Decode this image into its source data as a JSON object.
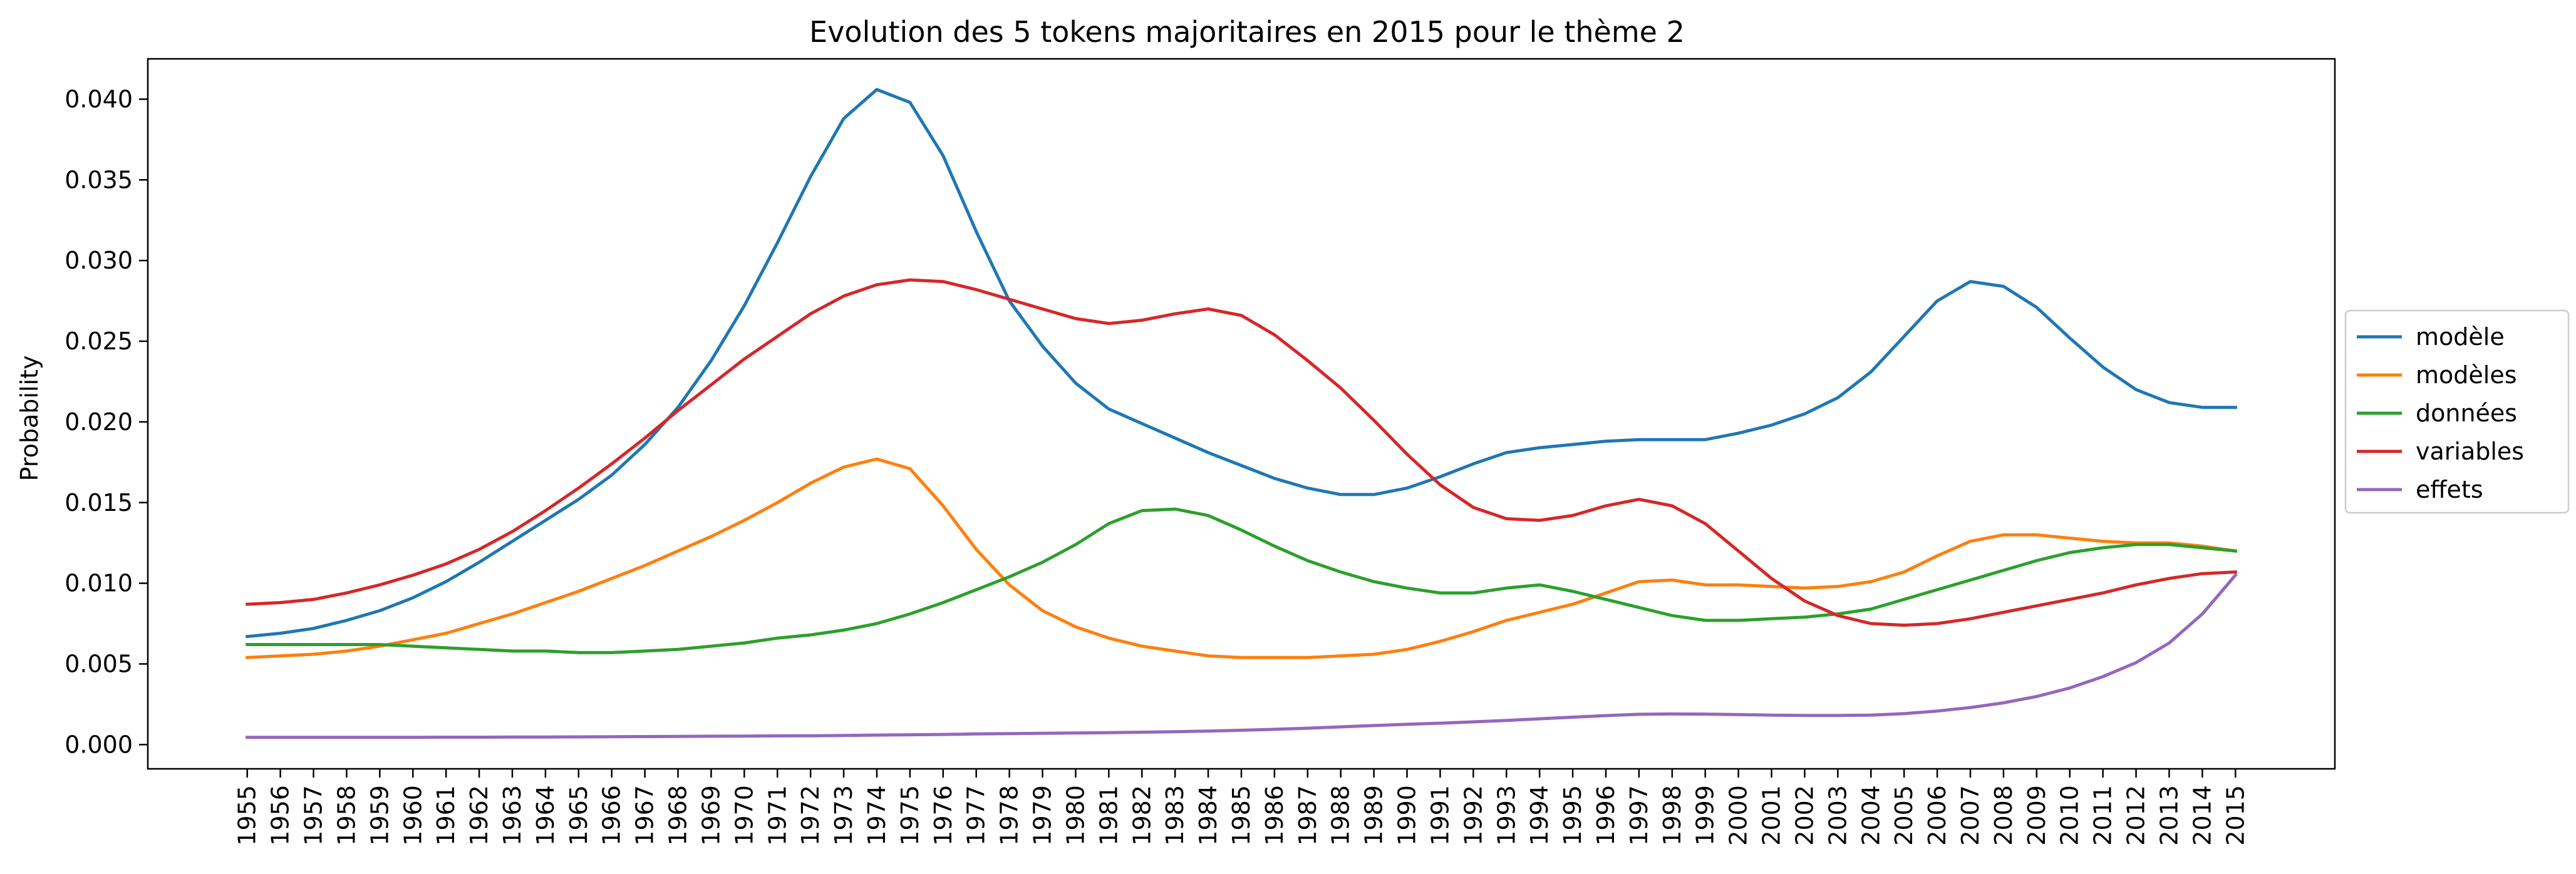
{
  "chart_data": {
    "type": "line",
    "title": "Evolution des 5 tokens majoritaires en 2015 pour le thème 2",
    "xlabel": "",
    "ylabel": "Probability",
    "x": [
      1955,
      1956,
      1957,
      1958,
      1959,
      1960,
      1961,
      1962,
      1963,
      1964,
      1965,
      1966,
      1967,
      1968,
      1969,
      1970,
      1971,
      1972,
      1973,
      1974,
      1975,
      1976,
      1977,
      1978,
      1979,
      1980,
      1981,
      1982,
      1983,
      1984,
      1985,
      1986,
      1987,
      1988,
      1989,
      1990,
      1991,
      1992,
      1993,
      1994,
      1995,
      1996,
      1997,
      1998,
      1999,
      2000,
      2001,
      2002,
      2003,
      2004,
      2005,
      2006,
      2007,
      2008,
      2009,
      2010,
      2011,
      2012,
      2013,
      2014,
      2015
    ],
    "x_tick_labels": [
      "1955",
      "1956",
      "1957",
      "1958",
      "1959",
      "1960",
      "1961",
      "1962",
      "1963",
      "1964",
      "1965",
      "1966",
      "1967",
      "1968",
      "1969",
      "1970",
      "1971",
      "1972",
      "1973",
      "1974",
      "1975",
      "1976",
      "1977",
      "1978",
      "1979",
      "1980",
      "1981",
      "1982",
      "1983",
      "1984",
      "1985",
      "1986",
      "1987",
      "1988",
      "1989",
      "1990",
      "1991",
      "1992",
      "1993",
      "1994",
      "1995",
      "1996",
      "1997",
      "1998",
      "1999",
      "2000",
      "2001",
      "2002",
      "2003",
      "2004",
      "2005",
      "2006",
      "2007",
      "2008",
      "2009",
      "2010",
      "2011",
      "2012",
      "2013",
      "2014",
      "2015"
    ],
    "y_ticks": [
      0.0,
      0.005,
      0.01,
      0.015,
      0.02,
      0.025,
      0.03,
      0.035,
      0.04
    ],
    "y_tick_labels": [
      "0.000",
      "0.005",
      "0.010",
      "0.015",
      "0.020",
      "0.025",
      "0.030",
      "0.035",
      "0.040"
    ],
    "ylim": [
      -0.0015,
      0.0425
    ],
    "xlim": [
      1952,
      2018
    ],
    "grid": false,
    "legend_position": "center-right-outside",
    "series": [
      {
        "name": "modèle",
        "color": "#1f77b4",
        "values": [
          0.0067,
          0.0069,
          0.0072,
          0.0077,
          0.0083,
          0.0091,
          0.0101,
          0.0113,
          0.0126,
          0.0139,
          0.0152,
          0.0167,
          0.0186,
          0.0209,
          0.0238,
          0.0272,
          0.0311,
          0.0352,
          0.0388,
          0.0406,
          0.0398,
          0.0365,
          0.0318,
          0.0275,
          0.0247,
          0.0224,
          0.0208,
          0.0199,
          0.019,
          0.0181,
          0.0173,
          0.0165,
          0.0159,
          0.0155,
          0.0155,
          0.0159,
          0.0166,
          0.0174,
          0.0181,
          0.0184,
          0.0186,
          0.0188,
          0.0189,
          0.0189,
          0.0189,
          0.0193,
          0.0198,
          0.0205,
          0.0215,
          0.0231,
          0.0253,
          0.0275,
          0.0287,
          0.0284,
          0.0271,
          0.0252,
          0.0234,
          0.022,
          0.0212,
          0.0209,
          0.0209
        ]
      },
      {
        "name": "modèles",
        "color": "#ff7f0e",
        "values": [
          0.0054,
          0.0055,
          0.0056,
          0.0058,
          0.0061,
          0.0065,
          0.0069,
          0.0075,
          0.0081,
          0.0088,
          0.0095,
          0.0103,
          0.0111,
          0.012,
          0.0129,
          0.0139,
          0.015,
          0.0162,
          0.0172,
          0.0177,
          0.0171,
          0.0148,
          0.0121,
          0.0099,
          0.0083,
          0.0073,
          0.0066,
          0.0061,
          0.0058,
          0.0055,
          0.0054,
          0.0054,
          0.0054,
          0.0055,
          0.0056,
          0.0059,
          0.0064,
          0.007,
          0.0077,
          0.0082,
          0.0087,
          0.0094,
          0.0101,
          0.0102,
          0.0099,
          0.0099,
          0.0098,
          0.0097,
          0.0098,
          0.0101,
          0.0107,
          0.0117,
          0.0126,
          0.013,
          0.013,
          0.0128,
          0.0126,
          0.0125,
          0.0125,
          0.0123,
          0.012
        ]
      },
      {
        "name": "données",
        "color": "#2ca02c",
        "values": [
          0.0062,
          0.0062,
          0.0062,
          0.0062,
          0.0062,
          0.0061,
          0.006,
          0.0059,
          0.0058,
          0.0058,
          0.0057,
          0.0057,
          0.0058,
          0.0059,
          0.0061,
          0.0063,
          0.0066,
          0.0068,
          0.0071,
          0.0075,
          0.0081,
          0.0088,
          0.0096,
          0.0104,
          0.0113,
          0.0124,
          0.0137,
          0.0145,
          0.0146,
          0.0142,
          0.0133,
          0.0123,
          0.0114,
          0.0107,
          0.0101,
          0.0097,
          0.0094,
          0.0094,
          0.0097,
          0.0099,
          0.0095,
          0.009,
          0.0085,
          0.008,
          0.0077,
          0.0077,
          0.0078,
          0.0079,
          0.0081,
          0.0084,
          0.009,
          0.0096,
          0.0102,
          0.0108,
          0.0114,
          0.0119,
          0.0122,
          0.0124,
          0.0124,
          0.0122,
          0.012
        ]
      },
      {
        "name": "variables",
        "color": "#d62728",
        "values": [
          0.0087,
          0.0088,
          0.009,
          0.0094,
          0.0099,
          0.0105,
          0.0112,
          0.0121,
          0.0132,
          0.0145,
          0.0159,
          0.0174,
          0.019,
          0.0207,
          0.0223,
          0.0239,
          0.0253,
          0.0267,
          0.0278,
          0.0285,
          0.0288,
          0.0287,
          0.0282,
          0.0276,
          0.027,
          0.0264,
          0.0261,
          0.0263,
          0.0267,
          0.027,
          0.0266,
          0.0254,
          0.0238,
          0.0221,
          0.0201,
          0.018,
          0.0161,
          0.0147,
          0.014,
          0.0139,
          0.0142,
          0.0148,
          0.0152,
          0.0148,
          0.0137,
          0.012,
          0.0103,
          0.0089,
          0.008,
          0.0075,
          0.0074,
          0.0075,
          0.0078,
          0.0082,
          0.0086,
          0.009,
          0.0094,
          0.0099,
          0.0103,
          0.0106,
          0.0107
        ]
      },
      {
        "name": "effets",
        "color": "#9467bd",
        "values": [
          0.00045,
          0.00045,
          0.00045,
          0.00045,
          0.00045,
          0.00045,
          0.00046,
          0.00046,
          0.00047,
          0.00047,
          0.00048,
          0.00049,
          0.0005,
          0.00051,
          0.00052,
          0.00053,
          0.00054,
          0.00055,
          0.00057,
          0.00059,
          0.00061,
          0.00063,
          0.00066,
          0.00068,
          0.0007,
          0.00072,
          0.00074,
          0.00077,
          0.0008,
          0.00084,
          0.00089,
          0.00095,
          0.00102,
          0.0011,
          0.00118,
          0.00126,
          0.00133,
          0.00141,
          0.0015,
          0.0016,
          0.0017,
          0.0018,
          0.00188,
          0.0019,
          0.00189,
          0.00186,
          0.00183,
          0.00181,
          0.00181,
          0.00183,
          0.00192,
          0.00208,
          0.0023,
          0.00259,
          0.00298,
          0.00351,
          0.00421,
          0.00508,
          0.0063,
          0.0081,
          0.0105
        ]
      }
    ]
  }
}
